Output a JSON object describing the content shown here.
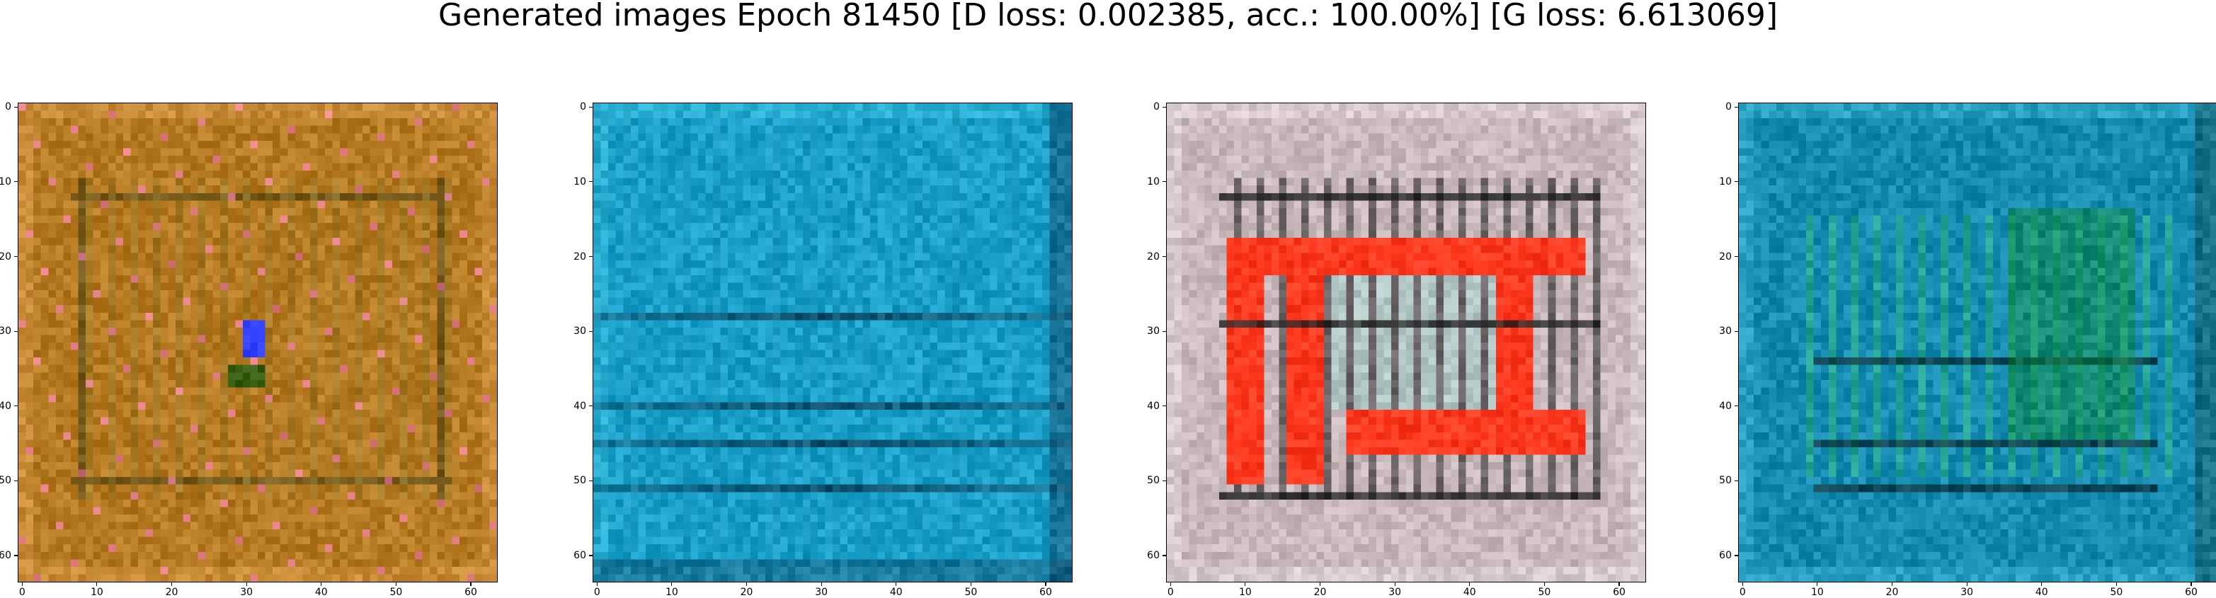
{
  "title": "Generated images Epoch 81450 [D loss: 0.002385, acc.: 100.00%] [G loss: 6.613069]",
  "axis": {
    "y_ticks": [
      "0",
      "10",
      "20",
      "30",
      "40",
      "50",
      "60"
    ],
    "x_ticks": [
      "0",
      "10",
      "20",
      "30",
      "40",
      "50",
      "60"
    ]
  },
  "panels": [
    {
      "name": "generated-image-1",
      "palette": {
        "base": "#b57a22",
        "dark": "#5c4a1a",
        "mid": "#8a7a2a",
        "light": "#e0a050",
        "accent1": "#3040ff",
        "accent2": "#ff80c0",
        "accent3": "#2a5a10"
      }
    },
    {
      "name": "generated-image-2",
      "palette": {
        "base": "#1aa0c8",
        "dark": "#08304a",
        "mid": "#1588b0",
        "light": "#40c0e0",
        "accent1": "#0a4060",
        "accent2": "#60d0e8",
        "accent3": "#0a6a80"
      }
    },
    {
      "name": "generated-image-3",
      "palette": {
        "base": "#c8b8bc",
        "dark": "#202020",
        "mid": "#8aa6a8",
        "light": "#e8e0e4",
        "accent1": "#ff3a20",
        "accent2": "#9ed0cc",
        "accent3": "#4a5a70"
      }
    },
    {
      "name": "generated-image-4",
      "palette": {
        "base": "#168ab0",
        "dark": "#0a2a30",
        "mid": "#0e7aa0",
        "light": "#40b8d8",
        "accent1": "#108a40",
        "accent2": "#30c070",
        "accent3": "#0a4a50"
      }
    }
  ]
}
